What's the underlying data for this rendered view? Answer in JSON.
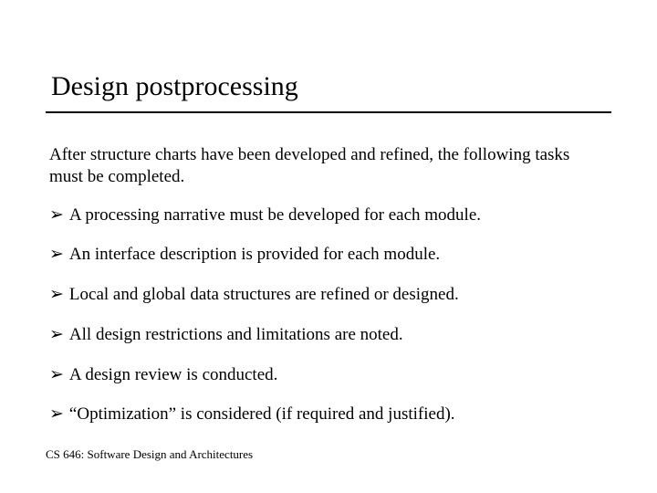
{
  "title": "Design postprocessing",
  "intro": "After structure charts have been developed and refined, the following tasks must be completed.",
  "bullet_glyph": "➢",
  "bullets": [
    "A processing narrative must be developed for each module.",
    "An interface description is provided for each module.",
    "Local and global data structures are refined or designed.",
    "All design restrictions and limitations are noted.",
    "A design review is conducted.",
    "“Optimization” is considered (if required and justified)."
  ],
  "footer": "CS 646: Software Design and Architectures",
  "colors": {
    "background": "#ffffff",
    "text": "#000000",
    "rule": "#000000"
  },
  "typography": {
    "title_fontsize": 30,
    "body_fontsize": 19,
    "footer_fontsize": 13,
    "font_family": "Times New Roman"
  }
}
